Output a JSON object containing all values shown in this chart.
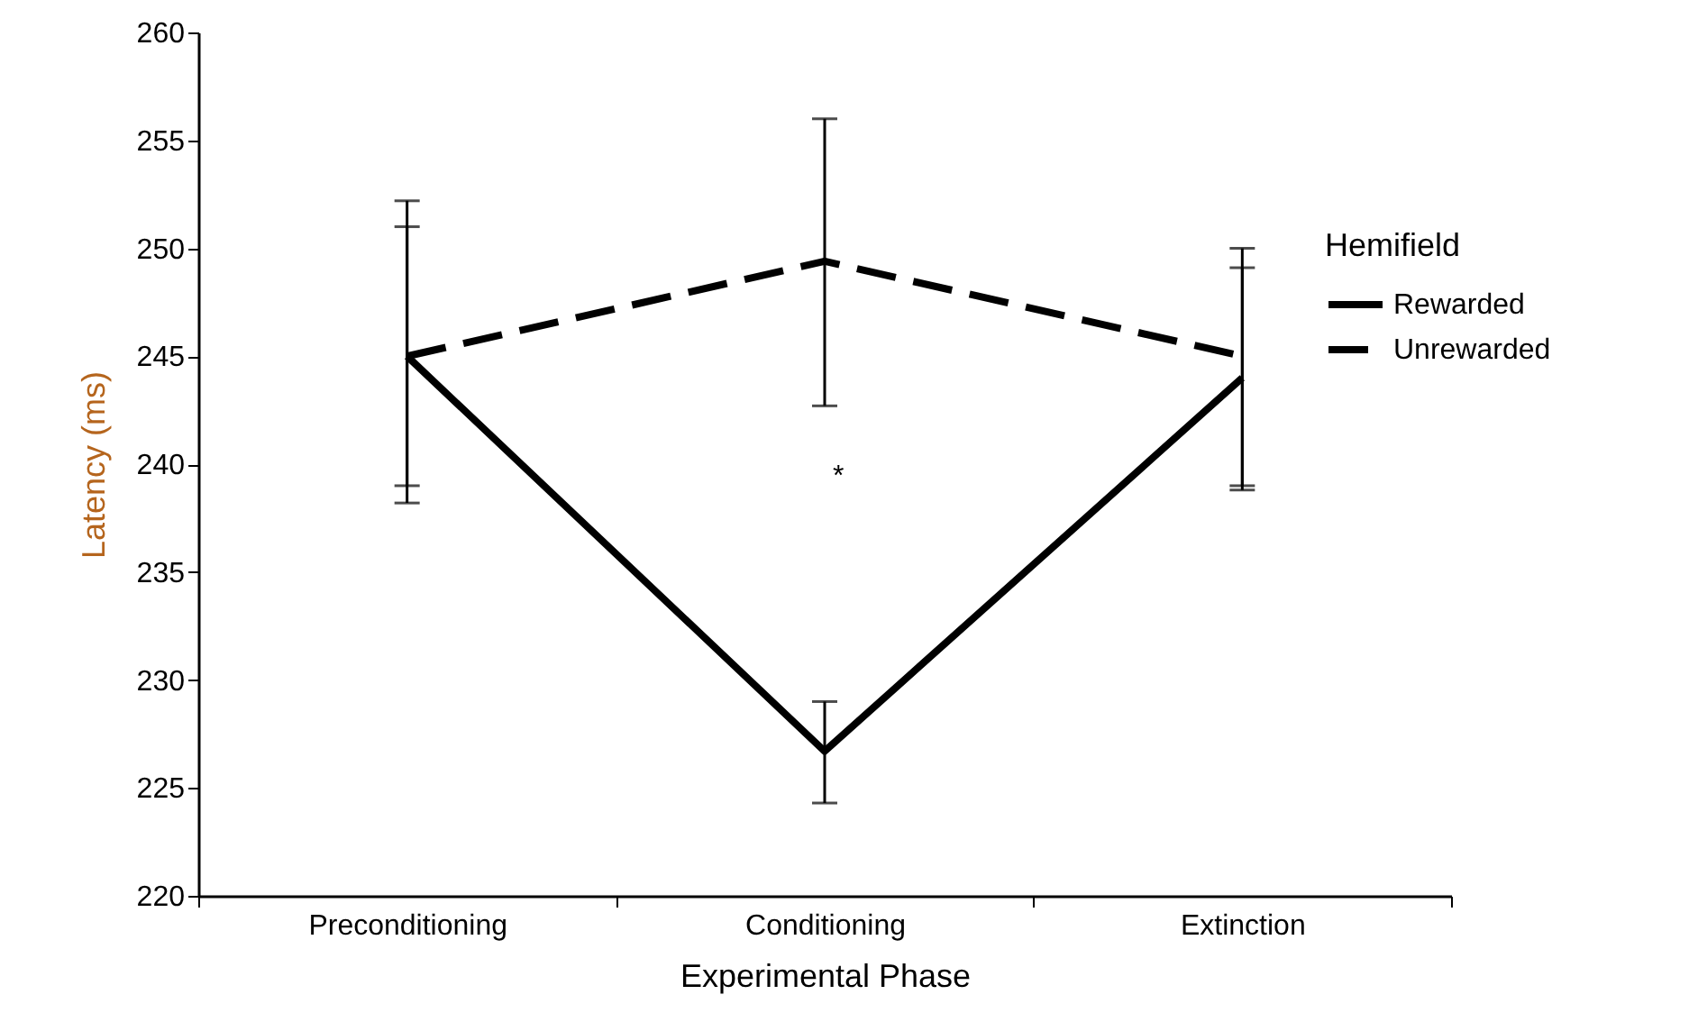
{
  "chart_data": {
    "type": "line",
    "xlabel": "Experimental Phase",
    "ylabel": "Latency (ms)",
    "legend_title": "Hemifield",
    "categories": [
      "Preconditioning",
      "Conditioning",
      "Extinction"
    ],
    "series": [
      {
        "name": "Rewarded",
        "color": "#000000",
        "line_style": "solid",
        "values": [
          245.0,
          226.7,
          244.0
        ],
        "errors": [
          [
            239.0,
            251.0
          ],
          [
            224.3,
            229.0
          ],
          [
            239.0,
            249.1
          ]
        ]
      },
      {
        "name": "Unrewarded",
        "color": "#000000",
        "line_style": "dashed",
        "values": [
          245.0,
          249.4,
          245.0
        ],
        "errors": [
          [
            238.2,
            252.2
          ],
          [
            242.7,
            256.0
          ],
          [
            238.8,
            250.0
          ]
        ]
      }
    ],
    "ylim": [
      220,
      260
    ],
    "yticks": [
      220,
      225,
      230,
      235,
      240,
      245,
      250,
      255,
      260
    ],
    "annotations": [
      "*"
    ],
    "legend": "right",
    "grid": false,
    "marker": "none"
  }
}
